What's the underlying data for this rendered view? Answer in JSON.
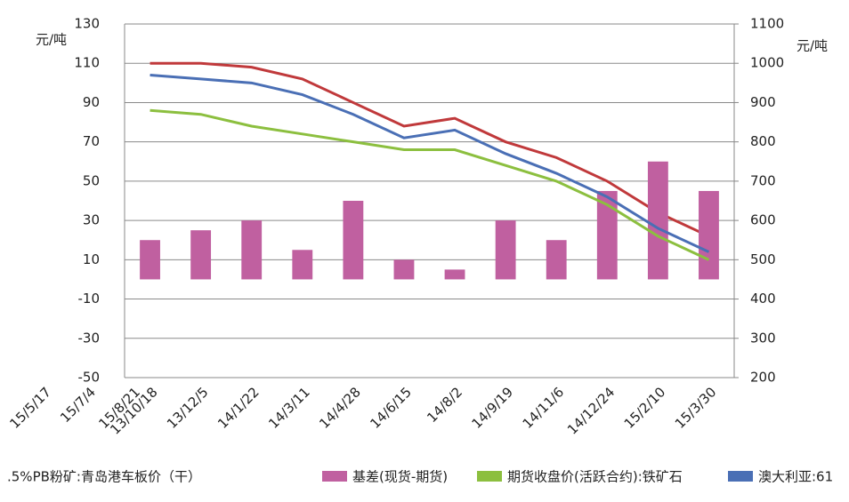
{
  "chart_data": [
    {
      "type": "combo",
      "y_unit": "元/吨",
      "y2_unit": "元/吨",
      "categories": [
        "13/10/18",
        "13/12/5",
        "14/1/22",
        "14/3/11",
        "14/4/28",
        "14/6/15",
        "14/8/2",
        "14/9/19",
        "14/11/6",
        "14/12/24",
        "15/2/10",
        "15/3/30"
      ],
      "ylim": [
        -50,
        130
      ],
      "yticks": [
        130,
        110,
        90,
        70,
        50,
        30,
        10,
        -10,
        -30,
        -50
      ],
      "y2lim": [
        200,
        1100
      ],
      "y2ticks": [
        1100,
        1000,
        900,
        800,
        700,
        600,
        500,
        400,
        300,
        200
      ],
      "grid": true,
      "series": [
        {
          "name": ".5%PB粉矿:青岛港车板价（干）",
          "kind": "line",
          "axis": "y2",
          "color": "#c0393b",
          "values": [
            1000,
            1000,
            990,
            960,
            900,
            840,
            860,
            800,
            760,
            700,
            620,
            560
          ]
        },
        {
          "name": "基差(现货-期货)",
          "kind": "bar",
          "axis": "y",
          "color": "#c060a0",
          "values": [
            20,
            25,
            30,
            15,
            40,
            10,
            5,
            30,
            20,
            45,
            60,
            45
          ]
        },
        {
          "name": "期货收盘价(活跃合约):铁矿石",
          "kind": "line",
          "axis": "y2",
          "color": "#8cbf3f",
          "values": [
            880,
            870,
            840,
            820,
            800,
            780,
            780,
            740,
            700,
            640,
            560,
            500
          ]
        },
        {
          "name": "澳大利亚:61",
          "kind": "line",
          "axis": "y2",
          "color": "#4a6fb5",
          "values": [
            970,
            960,
            950,
            920,
            870,
            810,
            830,
            770,
            720,
            660,
            580,
            520
          ]
        }
      ]
    },
    {
      "type": "axis",
      "categories": [
        "15/5/17",
        "15/7/4",
        "15/8/21"
      ]
    }
  ]
}
